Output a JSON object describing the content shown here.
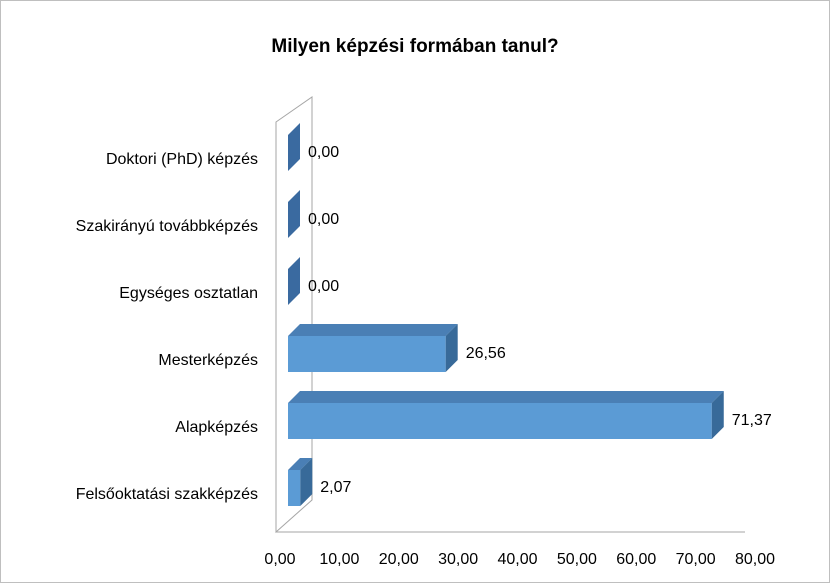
{
  "chart_data": {
    "type": "bar",
    "orientation": "horizontal",
    "three_d": true,
    "title": "Milyen képzési formában tanul?",
    "categories": [
      "Felsőoktatási szakképzés",
      "Alapképzés",
      "Mesterképzés",
      "Egységes osztatlan",
      "Szakirányú továbbképzés",
      "Doktori (PhD) képzés"
    ],
    "values": [
      2.07,
      71.37,
      26.56,
      0,
      0,
      0
    ],
    "value_labels": [
      "2,07",
      "71,37",
      "26,56",
      "0,00",
      "0,00",
      "0,00"
    ],
    "color": "#5b9bd5",
    "xlim": [
      0,
      80
    ],
    "xticks": [
      {
        "value": 0,
        "label": "0,00"
      },
      {
        "value": 10,
        "label": "10,00"
      },
      {
        "value": 20,
        "label": "20,00"
      },
      {
        "value": 30,
        "label": "30,00"
      },
      {
        "value": 40,
        "label": "40,00"
      },
      {
        "value": 50,
        "label": "50,00"
      },
      {
        "value": 60,
        "label": "60,00"
      },
      {
        "value": 70,
        "label": "70,00"
      },
      {
        "value": 80,
        "label": "80,00"
      }
    ],
    "grid": false
  }
}
